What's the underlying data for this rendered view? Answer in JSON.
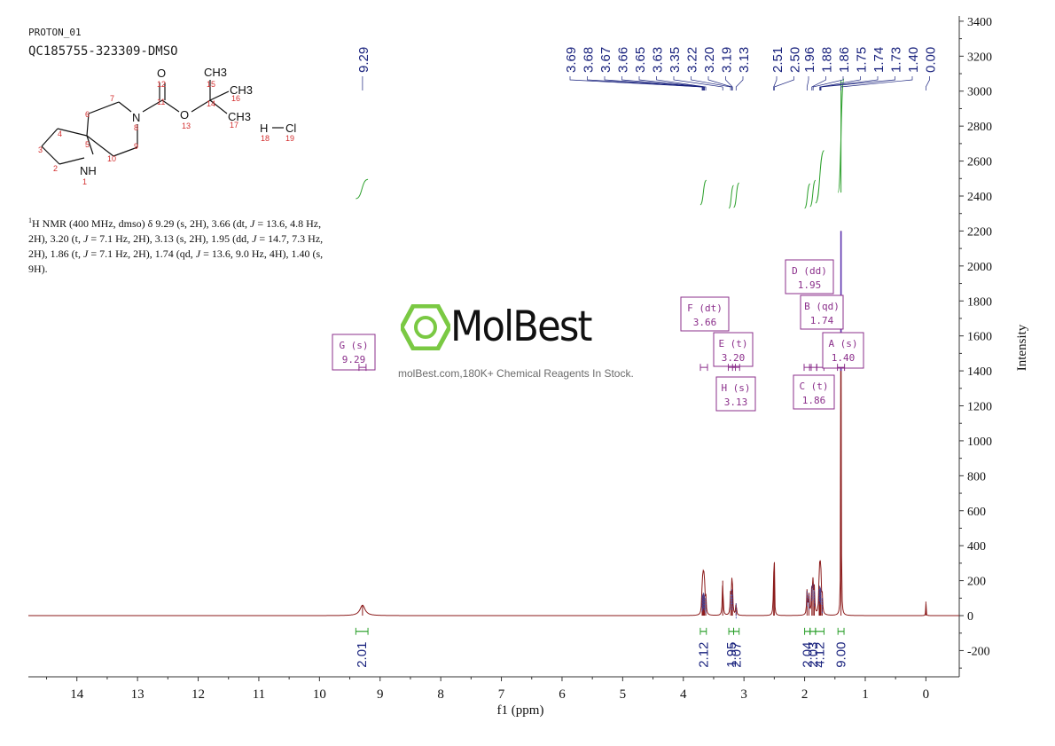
{
  "header": {
    "experiment": "PROTON_01",
    "sample": "QC185755-323309-DMSO"
  },
  "description": {
    "parts": [
      "1",
      "H NMR (400 MHz, dmso) δ 9.29 (s, 2H), 3.66 (dt, ",
      "J",
      " = 13.6, 4.8 Hz, 2H), 3.20 (t, ",
      "J",
      " = 7.1 Hz, 2H), 3.13 (s, 2H), 1.95 (dd, ",
      "J",
      " = 14.7, 7.3 Hz, 2H), 1.86 (t, ",
      "J",
      " = 7.1 Hz, 2H), 1.74 (qd, ",
      "J",
      " = 13.6, 9.0 Hz, 4H), 1.40 (s, 9H)."
    ]
  },
  "molecule": {
    "atoms": {
      "N1": "NH",
      "N8": "N",
      "O12": "O",
      "O13": "O",
      "C15": "CH3",
      "C16": "CH3",
      "C17": "CH3",
      "H18": "H",
      "Cl19": "Cl"
    },
    "numbers": [
      "1",
      "2",
      "3",
      "4",
      "5",
      "6",
      "7",
      "8",
      "9",
      "10",
      "11",
      "12",
      "13",
      "14",
      "15",
      "16",
      "17",
      "18",
      "19"
    ]
  },
  "watermark": {
    "name": "MolBest",
    "tagline": "molBest.com,180K+ Chemical Reagents In Stock."
  },
  "colors": {
    "spectrum": "#8b1a1a",
    "integral_curve": "#2ca02c",
    "peak_labels": "#1a237e",
    "multiplet_boxes": "#8b2f8b",
    "axis": "#333333"
  },
  "chart_data": {
    "type": "line",
    "title": "",
    "xlabel": "f1 (ppm)",
    "ylabel": "Intensity",
    "xlim": [
      14.8,
      -0.55
    ],
    "ylim": [
      -350,
      3430
    ],
    "x_ticks": [
      14,
      13,
      12,
      11,
      10,
      9,
      8,
      7,
      6,
      5,
      4,
      3,
      2,
      1,
      0
    ],
    "y_ticks": [
      -200,
      0,
      200,
      400,
      600,
      800,
      1000,
      1200,
      1400,
      1600,
      1800,
      2000,
      2200,
      2400,
      2600,
      2800,
      3000,
      3200,
      3400
    ],
    "x_reversed": true,
    "peaks": [
      {
        "ppm": 9.29,
        "intensity": 60
      },
      {
        "ppm": 3.69,
        "intensity": 110
      },
      {
        "ppm": 3.68,
        "intensity": 120
      },
      {
        "ppm": 3.67,
        "intensity": 130
      },
      {
        "ppm": 3.66,
        "intensity": 125
      },
      {
        "ppm": 3.65,
        "intensity": 115
      },
      {
        "ppm": 3.63,
        "intensity": 100
      },
      {
        "ppm": 3.35,
        "intensity": 200
      },
      {
        "ppm": 3.22,
        "intensity": 120
      },
      {
        "ppm": 3.2,
        "intensity": 150
      },
      {
        "ppm": 3.19,
        "intensity": 120
      },
      {
        "ppm": 3.13,
        "intensity": 70
      },
      {
        "ppm": 2.51,
        "intensity": 200
      },
      {
        "ppm": 2.5,
        "intensity": 300
      },
      {
        "ppm": 1.96,
        "intensity": 140
      },
      {
        "ppm": 1.93,
        "intensity": 120
      },
      {
        "ppm": 1.88,
        "intensity": 170
      },
      {
        "ppm": 1.86,
        "intensity": 180
      },
      {
        "ppm": 1.84,
        "intensity": 140
      },
      {
        "ppm": 1.76,
        "intensity": 150
      },
      {
        "ppm": 1.75,
        "intensity": 170
      },
      {
        "ppm": 1.74,
        "intensity": 160
      },
      {
        "ppm": 1.73,
        "intensity": 150
      },
      {
        "ppm": 1.71,
        "intensity": 100
      },
      {
        "ppm": 1.4,
        "intensity": 2200
      },
      {
        "ppm": 0.0,
        "intensity": 80
      }
    ],
    "peak_labels": [
      "9.29",
      "3.69",
      "3.68",
      "3.67",
      "3.66",
      "3.65",
      "3.63",
      "3.35",
      "3.22",
      "3.20",
      "3.19",
      "3.13",
      "2.51",
      "2.50",
      "1.96",
      "1.88",
      "1.86",
      "1.75",
      "1.74",
      "1.73",
      "1.40",
      "0.00"
    ],
    "integrals": [
      {
        "from": 9.4,
        "to": 9.2,
        "value": "2.01",
        "base": 2385,
        "height": 110
      },
      {
        "from": 3.72,
        "to": 3.62,
        "value": "2.12",
        "base": 2350,
        "height": 140
      },
      {
        "from": 3.25,
        "to": 3.17,
        "value": "1.95",
        "base": 2330,
        "height": 130
      },
      {
        "from": 3.17,
        "to": 3.08,
        "value": "2.07",
        "base": 2335,
        "height": 140
      },
      {
        "from": 2.0,
        "to": 1.91,
        "value": "2.04",
        "base": 2330,
        "height": 140
      },
      {
        "from": 1.91,
        "to": 1.82,
        "value": "2.03",
        "base": 2340,
        "height": 150
      },
      {
        "from": 1.82,
        "to": 1.68,
        "value": "4.12",
        "base": 2360,
        "height": 300
      },
      {
        "from": 1.45,
        "to": 1.35,
        "value": "9.00",
        "base": 2420,
        "height": 650
      }
    ],
    "multiplets": [
      {
        "label": "G (s)",
        "value": "9.29",
        "ppm": 9.29
      },
      {
        "label": "F (dt)",
        "value": "3.66",
        "ppm": 3.66
      },
      {
        "label": "E (t)",
        "value": "3.20",
        "ppm": 3.2
      },
      {
        "label": "H (s)",
        "value": "3.13",
        "ppm": 3.13
      },
      {
        "label": "D (dd)",
        "value": "1.95",
        "ppm": 1.95
      },
      {
        "label": "B (qd)",
        "value": "1.74",
        "ppm": 1.74
      },
      {
        "label": "C (t)",
        "value": "1.86",
        "ppm": 1.86
      },
      {
        "label": "A (s)",
        "value": "1.40",
        "ppm": 1.4
      }
    ]
  }
}
